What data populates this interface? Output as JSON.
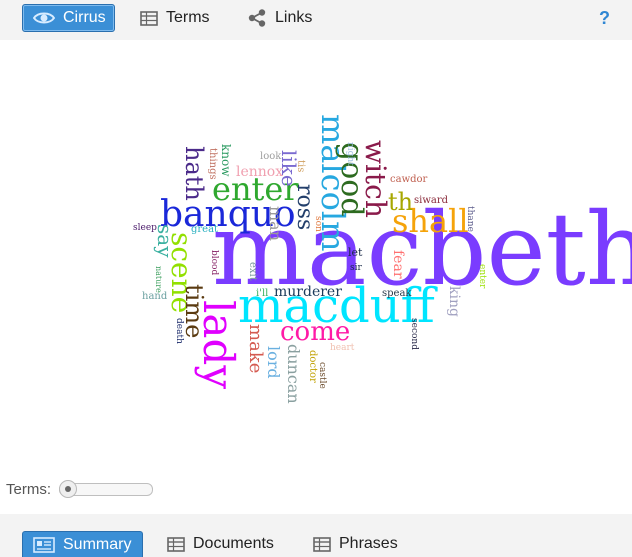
{
  "toolbar": {
    "tabs": [
      {
        "label": "Cirrus",
        "icon": "eye-icon",
        "active": true
      },
      {
        "label": "Terms",
        "icon": "table-icon",
        "active": false
      },
      {
        "label": "Links",
        "icon": "share-icon",
        "active": false
      }
    ],
    "help_label": "?"
  },
  "cloud": {
    "words": [
      {
        "text": "macbeth",
        "color": "#7a3cff"
      },
      {
        "text": "macduff",
        "color": "#00e5ff"
      },
      {
        "text": "lady",
        "color": "#e000ff"
      },
      {
        "text": "banquo",
        "color": "#1a28d9"
      },
      {
        "text": "enter",
        "color": "#2fa82f"
      },
      {
        "text": "malcolm",
        "color": "#27a8e0"
      },
      {
        "text": "good",
        "color": "#2d6b20"
      },
      {
        "text": "witch",
        "color": "#8a1a4a"
      },
      {
        "text": "shall",
        "color": "#f5a30a"
      },
      {
        "text": "th",
        "color": "#a7a700"
      },
      {
        "text": "scene",
        "color": "#92e000"
      },
      {
        "text": "time",
        "color": "#5a3a10"
      },
      {
        "text": "come",
        "color": "#ff1aa6"
      },
      {
        "text": "hath",
        "color": "#4b2a8a"
      },
      {
        "text": "ross",
        "color": "#233f6b"
      },
      {
        "text": "like",
        "color": "#7a6ad0"
      },
      {
        "text": "say",
        "color": "#3ab0a0"
      },
      {
        "text": "make",
        "color": "#d45a50"
      },
      {
        "text": "man",
        "color": "#9a9a9a"
      },
      {
        "text": "lord",
        "color": "#6ab0e0"
      },
      {
        "text": "duncan",
        "color": "#8aa0a0"
      },
      {
        "text": "murderer",
        "color": "#1a3a5a"
      },
      {
        "text": "fear",
        "color": "#ff7070"
      },
      {
        "text": "king",
        "color": "#a0a0c0"
      },
      {
        "text": "lennox",
        "color": "#f0a0b0"
      },
      {
        "text": "know",
        "color": "#2a9a60"
      },
      {
        "text": "things",
        "color": "#c07060"
      },
      {
        "text": "look",
        "color": "#a0a0a0"
      },
      {
        "text": "tis",
        "color": "#d0a060"
      },
      {
        "text": "night",
        "color": "#a0c0e0"
      },
      {
        "text": "cawdor",
        "color": "#c06050"
      },
      {
        "text": "siward",
        "color": "#8a2a3a"
      },
      {
        "text": "thane",
        "color": "#5a5a8a"
      },
      {
        "text": "sleep",
        "color": "#4a1a6a"
      },
      {
        "text": "great",
        "color": "#2ab0c0"
      },
      {
        "text": "blood",
        "color": "#8a2a6a"
      },
      {
        "text": "exit",
        "color": "#7a9a9a"
      },
      {
        "text": "son",
        "color": "#e07a40"
      },
      {
        "text": "let",
        "color": "#1a2a4a"
      },
      {
        "text": "sir",
        "color": "#1a2a4a"
      },
      {
        "text": "speak",
        "color": "#2a3a4a"
      },
      {
        "text": "second",
        "color": "#2a2a4a"
      },
      {
        "text": "nature",
        "color": "#40a060"
      },
      {
        "text": "hand",
        "color": "#6aa0a0"
      },
      {
        "text": "i'll",
        "color": "#3ab060"
      },
      {
        "text": "death",
        "color": "#1a2a6a"
      },
      {
        "text": "doctor",
        "color": "#c0a000"
      },
      {
        "text": "castle",
        "color": "#6a4a2a"
      },
      {
        "text": "heart",
        "color": "#f0c0b0"
      },
      {
        "text": "enter",
        "color": "#9ae000"
      }
    ]
  },
  "terms_control": {
    "label": "Terms:",
    "value": 0.0
  },
  "bottom_tabs": [
    {
      "label": "Summary",
      "icon": "summary-icon",
      "active": true
    },
    {
      "label": "Documents",
      "icon": "table-icon",
      "active": false
    },
    {
      "label": "Phrases",
      "icon": "table-icon",
      "active": false
    }
  ]
}
